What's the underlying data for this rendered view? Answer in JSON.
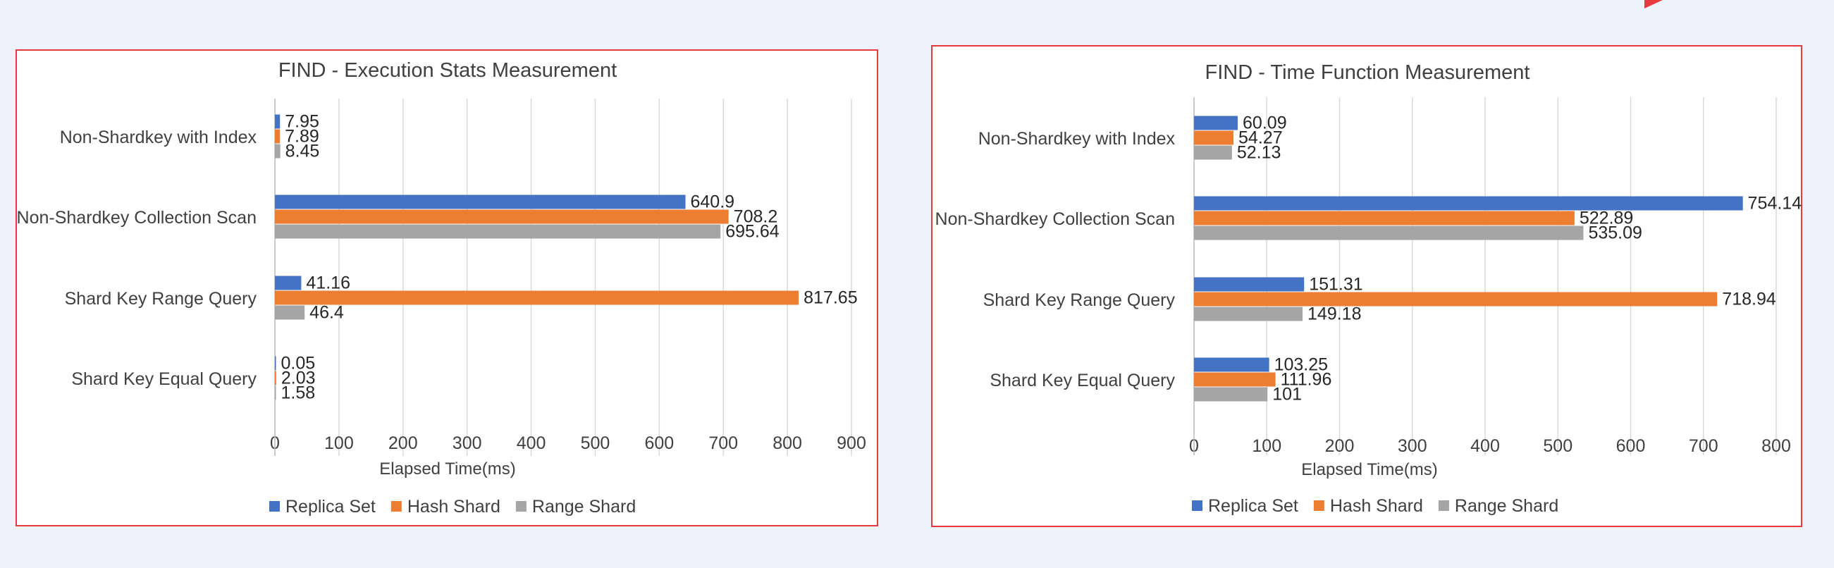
{
  "colors": {
    "replica_set": "#4472c4",
    "hash_shard": "#ed7d31",
    "range_shard": "#a5a5a5",
    "panel_border": "#e8393f",
    "background": "#eef2fd"
  },
  "chart_data": [
    {
      "type": "bar",
      "orientation": "horizontal",
      "title": "FIND - Execution Stats Measurement",
      "xlabel": "Elapsed Time(ms)",
      "ylabel": "",
      "xlim": [
        0,
        900
      ],
      "xticks": [
        0,
        100,
        200,
        300,
        400,
        500,
        600,
        700,
        800,
        900
      ],
      "grid": "vertical",
      "legend": "bottom",
      "categories": [
        "Non-Shardkey with Index",
        "Non-Shardkey Collection Scan",
        "Shard Key Range Query",
        "Shard Key Equal Query"
      ],
      "series": [
        {
          "name": "Replica Set",
          "values": [
            7.95,
            640.9,
            41.16,
            0.05
          ],
          "labels": [
            "7.95",
            "640.9",
            "41.16",
            "0.05"
          ]
        },
        {
          "name": "Hash Shard",
          "values": [
            7.89,
            708.2,
            817.65,
            2.03
          ],
          "labels": [
            "7.89",
            "708.2",
            "817.65",
            "2.03"
          ]
        },
        {
          "name": "Range Shard",
          "values": [
            8.45,
            695.64,
            46.4,
            1.58
          ],
          "labels": [
            "8.45",
            "695.64",
            "46.4",
            "1.58"
          ]
        }
      ]
    },
    {
      "type": "bar",
      "orientation": "horizontal",
      "title": "FIND - Time Function Measurement",
      "xlabel": "Elapsed Time(ms)",
      "ylabel": "",
      "xlim": [
        0,
        800
      ],
      "xticks": [
        0,
        100,
        200,
        300,
        400,
        500,
        600,
        700,
        800
      ],
      "grid": "vertical",
      "legend": "bottom",
      "categories": [
        "Non-Shardkey with Index",
        "Non-Shardkey Collection Scan",
        "Shard Key Range Query",
        "Shard Key Equal Query"
      ],
      "series": [
        {
          "name": "Replica Set",
          "values": [
            60.09,
            754.14,
            151.31,
            103.25
          ],
          "labels": [
            "60.09",
            "754.14",
            "151.31",
            "103.25"
          ]
        },
        {
          "name": "Hash Shard",
          "values": [
            54.27,
            522.89,
            718.94,
            111.96
          ],
          "labels": [
            "54.27",
            "522.89",
            "718.94",
            "111.96"
          ]
        },
        {
          "name": "Range Shard",
          "values": [
            52.13,
            535.09,
            149.18,
            101
          ],
          "labels": [
            "52.13",
            "535.09",
            "149.18",
            "101"
          ]
        }
      ]
    }
  ]
}
